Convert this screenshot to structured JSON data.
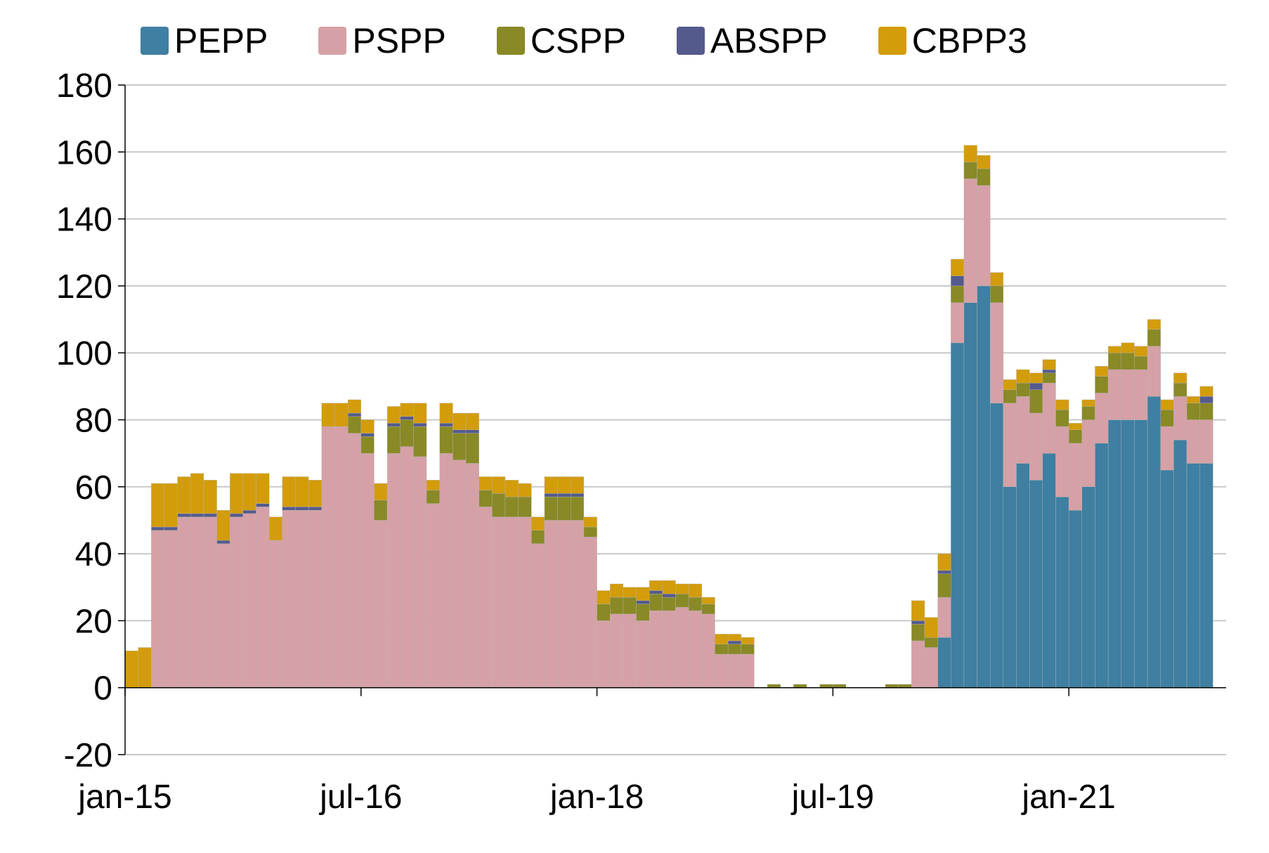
{
  "chart_data": {
    "type": "bar",
    "stacked": true,
    "title": "",
    "xlabel": "",
    "ylabel": "",
    "ylim": [
      -20,
      180
    ],
    "yticks": [
      180,
      160,
      140,
      120,
      100,
      80,
      60,
      40,
      20,
      0,
      -20
    ],
    "xtick_labels": [
      "jan-15",
      "jul-16",
      "jan-18",
      "jul-19",
      "jan-21"
    ],
    "grid": true,
    "legend_position": "top",
    "categories": [
      "jan-15",
      "feb-15",
      "mar-15",
      "apr-15",
      "may-15",
      "jun-15",
      "jul-15",
      "aug-15",
      "sep-15",
      "oct-15",
      "nov-15",
      "dec-15",
      "jan-16",
      "feb-16",
      "mar-16",
      "apr-16",
      "may-16",
      "jun-16",
      "jul-16",
      "aug-16",
      "sep-16",
      "oct-16",
      "nov-16",
      "dec-16",
      "jan-17",
      "feb-17",
      "mar-17",
      "apr-17",
      "may-17",
      "jun-17",
      "jul-17",
      "aug-17",
      "sep-17",
      "oct-17",
      "nov-17",
      "dec-17",
      "jan-18",
      "feb-18",
      "mar-18",
      "apr-18",
      "may-18",
      "jun-18",
      "jul-18",
      "aug-18",
      "sep-18",
      "oct-18",
      "nov-18",
      "dec-18",
      "jan-19",
      "feb-19",
      "mar-19",
      "apr-19",
      "may-19",
      "jun-19",
      "jul-19",
      "aug-19",
      "sep-19",
      "oct-19",
      "nov-19",
      "dec-19",
      "jan-20",
      "feb-20",
      "mar-20",
      "apr-20",
      "may-20",
      "jun-20",
      "jul-20",
      "aug-20",
      "sep-20",
      "oct-20",
      "nov-20",
      "dec-20",
      "jan-21",
      "feb-21",
      "mar-21",
      "apr-21",
      "may-21",
      "jun-21",
      "jul-21",
      "aug-21",
      "sep-21",
      "oct-21",
      "nov-21",
      "dec-21"
    ],
    "series": [
      {
        "name": "PEPP",
        "color": "#3f7fa1",
        "values": [
          0,
          0,
          0,
          0,
          0,
          0,
          0,
          0,
          0,
          0,
          0,
          0,
          0,
          0,
          0,
          0,
          0,
          0,
          0,
          0,
          0,
          0,
          0,
          0,
          0,
          0,
          0,
          0,
          0,
          0,
          0,
          0,
          0,
          0,
          0,
          0,
          0,
          0,
          0,
          0,
          0,
          0,
          0,
          0,
          0,
          0,
          0,
          0,
          0,
          0,
          0,
          0,
          0,
          0,
          0,
          0,
          0,
          0,
          0,
          0,
          0,
          0,
          15,
          103,
          115,
          120,
          85,
          60,
          67,
          62,
          70,
          57,
          53,
          60,
          73,
          80,
          80,
          80,
          87,
          65,
          74,
          67,
          67,
          0
        ]
      },
      {
        "name": "PSPP",
        "color": "#d5a1a6",
        "values": [
          0,
          0,
          47,
          47,
          51,
          51,
          51,
          43,
          51,
          52,
          54,
          44,
          53,
          53,
          53,
          78,
          78,
          76,
          70,
          50,
          70,
          72,
          69,
          55,
          70,
          68,
          67,
          54,
          51,
          51,
          51,
          43,
          50,
          50,
          50,
          45,
          20,
          22,
          22,
          20,
          23,
          23,
          24,
          23,
          22,
          10,
          10,
          10,
          0,
          0,
          0,
          0,
          0,
          0,
          0,
          0,
          0,
          0,
          0,
          0,
          14,
          12,
          12,
          12,
          37,
          30,
          30,
          25,
          20,
          20,
          21,
          21,
          20,
          20,
          15,
          15,
          15,
          15,
          15,
          13,
          13,
          13,
          13,
          0
        ]
      },
      {
        "name": "CSPP",
        "color": "#898926",
        "values": [
          0,
          0,
          0,
          0,
          0,
          0,
          0,
          0,
          0,
          0,
          0,
          0,
          0,
          0,
          0,
          0,
          0,
          5,
          5,
          6,
          8,
          8,
          9,
          4,
          8,
          8,
          9,
          5,
          7,
          6,
          6,
          4,
          7,
          7,
          7,
          3,
          5,
          5,
          5,
          5,
          5,
          4,
          4,
          4,
          3,
          3,
          3,
          3,
          0,
          1,
          0,
          1,
          0,
          1,
          1,
          0,
          0,
          0,
          1,
          1,
          5,
          3,
          7,
          5,
          5,
          5,
          5,
          4,
          4,
          7,
          3,
          5,
          4,
          4,
          5,
          5,
          5,
          4,
          5,
          5,
          4,
          5,
          5,
          0
        ]
      },
      {
        "name": "ABSPP",
        "color": "#545a8c",
        "values": [
          0,
          0,
          1,
          1,
          1,
          1,
          1,
          1,
          1,
          1,
          1,
          0,
          1,
          1,
          1,
          0,
          0,
          1,
          1,
          0,
          1,
          1,
          1,
          0,
          1,
          1,
          1,
          0,
          0,
          0,
          0,
          0,
          1,
          1,
          1,
          0,
          0,
          0,
          0,
          1,
          1,
          1,
          0,
          0,
          0,
          0,
          1,
          0,
          0,
          0,
          0,
          0,
          0,
          0,
          0,
          0,
          0,
          0,
          0,
          0,
          1,
          0,
          1,
          3,
          0,
          0,
          0,
          0,
          0,
          2,
          1,
          0,
          0,
          0,
          0,
          0,
          0,
          0,
          0,
          0,
          0,
          0,
          2,
          0
        ]
      },
      {
        "name": "CBPP3",
        "color": "#d39c0b",
        "values": [
          11,
          12,
          13,
          13,
          11,
          12,
          10,
          9,
          12,
          11,
          9,
          7,
          9,
          9,
          8,
          7,
          7,
          4,
          4,
          5,
          5,
          4,
          6,
          3,
          6,
          5,
          5,
          4,
          5,
          5,
          4,
          4,
          5,
          5,
          5,
          3,
          4,
          4,
          3,
          4,
          3,
          4,
          3,
          4,
          2,
          3,
          2,
          2,
          0,
          0,
          0,
          0,
          0,
          0,
          0,
          0,
          0,
          0,
          0,
          0,
          6,
          6,
          5,
          5,
          5,
          4,
          4,
          3,
          4,
          3,
          3,
          3,
          2,
          2,
          3,
          2,
          3,
          3,
          3,
          3,
          3,
          2,
          3,
          0
        ]
      }
    ]
  }
}
